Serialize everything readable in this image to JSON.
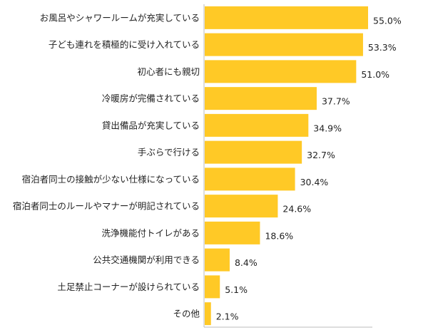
{
  "chart_data": {
    "type": "bar",
    "orientation": "horizontal",
    "title": "",
    "xlabel": "",
    "ylabel": "",
    "xlim": [
      0,
      60
    ],
    "grid": false,
    "legend": "none",
    "bar_color": "#FFC926",
    "value_suffix": "%",
    "categories": [
      "お風呂やシャワールームが充実している",
      "子ども連れを積極的に受け入れている",
      "初心者にも親切",
      "冷暖房が完備されている",
      "貸出備品が充実している",
      "手ぶらで行ける",
      "宿泊者同士の接触が少ない仕様になっている",
      "宿泊者同士のルールやマナーが明記されている",
      "洗浄機能付トイレがある",
      "公共交通機関が利用できる",
      "土足禁止コーナーが設けられている",
      "その他"
    ],
    "values": [
      55.0,
      53.3,
      51.0,
      37.7,
      34.9,
      32.7,
      30.4,
      24.6,
      18.6,
      8.4,
      5.1,
      2.1
    ],
    "value_labels": [
      "55.0%",
      "53.3%",
      "51.0%",
      "37.7%",
      "34.9%",
      "32.7%",
      "30.4%",
      "24.6%",
      "18.6%",
      "8.4%",
      "5.1%",
      "2.1%"
    ]
  }
}
